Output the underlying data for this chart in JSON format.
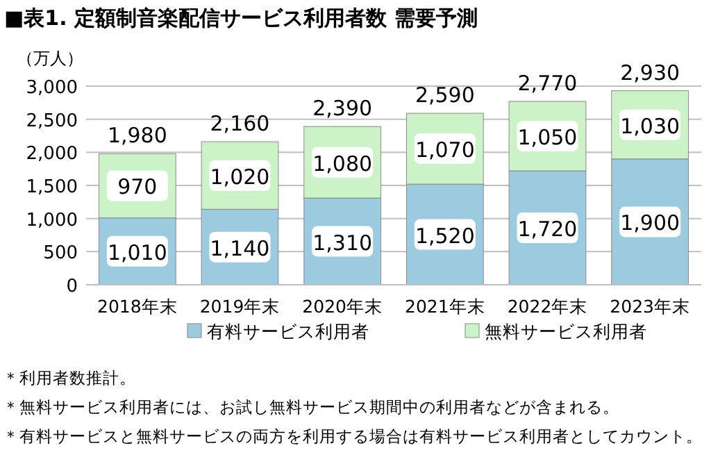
{
  "chart_data": {
    "type": "bar",
    "stacked": true,
    "title": "■表1. 定額制音楽配信サービス利用者数 需要予測",
    "ylabel": "（万人）",
    "categories": [
      "2018年末",
      "2019年末",
      "2020年末",
      "2021年末",
      "2022年末",
      "2023年末"
    ],
    "series": [
      {
        "name": "有料サービス利用者",
        "color": "#9ccbe0",
        "values": [
          1010,
          1140,
          1310,
          1520,
          1720,
          1900
        ],
        "value_labels": [
          "1,010",
          "1,140",
          "1,310",
          "1,520",
          "1,720",
          "1,900"
        ]
      },
      {
        "name": "無料サービス利用者",
        "color": "#ccf2c8",
        "values": [
          970,
          1020,
          1080,
          1070,
          1050,
          1030
        ],
        "value_labels": [
          "970",
          "1,020",
          "1,080",
          "1,070",
          "1,050",
          "1,030"
        ]
      }
    ],
    "totals": [
      "1,980",
      "2,160",
      "2,390",
      "2,590",
      "2,770",
      "2,930"
    ],
    "ylim": [
      0,
      3000
    ],
    "yticks": [
      {
        "value": 0,
        "label": "0"
      },
      {
        "value": 500,
        "label": "500"
      },
      {
        "value": 1000,
        "label": "1,000"
      },
      {
        "value": 1500,
        "label": "1,500"
      },
      {
        "value": 2000,
        "label": "2,000"
      },
      {
        "value": 2500,
        "label": "2,500"
      },
      {
        "value": 3000,
        "label": "3,000"
      }
    ],
    "grid": "y",
    "legend": "bottom",
    "annotations": [
      "＊利用者数推計。",
      "＊無料サービス利用者には、お試し無料サービス期間中の利用者などが含まれる。",
      "＊有料サービスと無料サービスの両方を利用する場合は有料サービス利用者としてカウント。"
    ]
  }
}
